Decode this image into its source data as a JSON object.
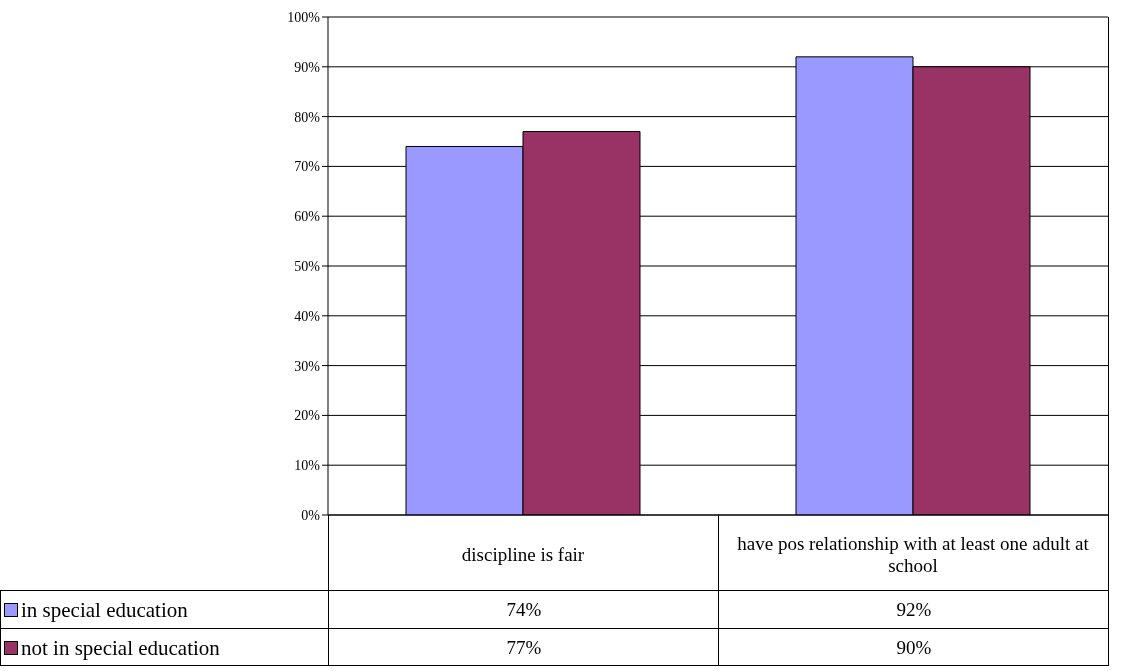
{
  "chart_data": {
    "type": "bar",
    "categories": [
      "discipline is fair",
      "have pos relationship with at least one adult at school"
    ],
    "series": [
      {
        "name": "in special education",
        "color": "#9999ff",
        "values": [
          74,
          92
        ],
        "value_labels": [
          "74%",
          "92%"
        ]
      },
      {
        "name": "not in special education",
        "color": "#993366",
        "values": [
          77,
          90
        ],
        "value_labels": [
          "77%",
          "90%"
        ]
      }
    ],
    "ylim": [
      0,
      100
    ],
    "yticks": [
      {
        "value": 0,
        "label": "0%"
      },
      {
        "value": 10,
        "label": "10%"
      },
      {
        "value": 20,
        "label": "20%"
      },
      {
        "value": 30,
        "label": "30%"
      },
      {
        "value": 40,
        "label": "40%"
      },
      {
        "value": 50,
        "label": "50%"
      },
      {
        "value": 60,
        "label": "60%"
      },
      {
        "value": 70,
        "label": "70%"
      },
      {
        "value": 80,
        "label": "80%"
      },
      {
        "value": 90,
        "label": "90%"
      },
      {
        "value": 100,
        "label": "100%"
      }
    ],
    "grid": "y",
    "legend": "bottom left"
  }
}
